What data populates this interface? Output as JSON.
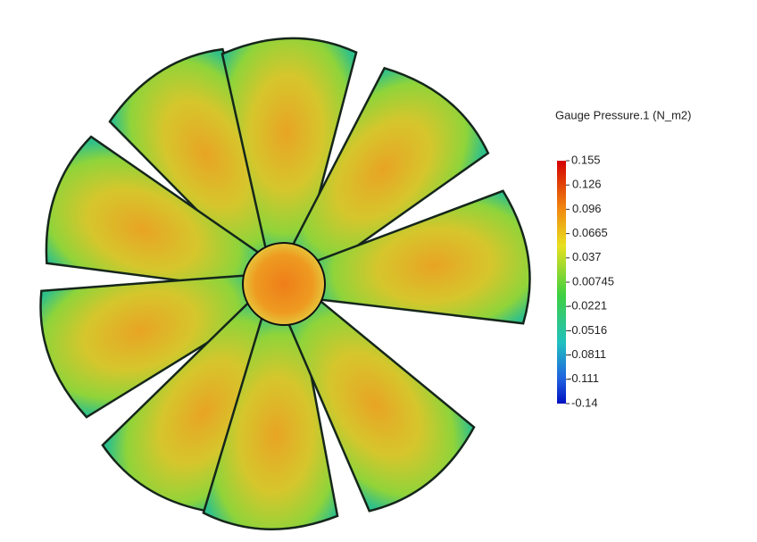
{
  "legend": {
    "title": "Gauge Pressure.1 (N_m2)",
    "ticks": [
      "0.155",
      "0.126",
      "0.096",
      "0.0665",
      "0.037",
      "0.00745",
      "-0.0221",
      "-0.0516",
      "-0.0811",
      "-0.111",
      "-0.14"
    ]
  }
}
